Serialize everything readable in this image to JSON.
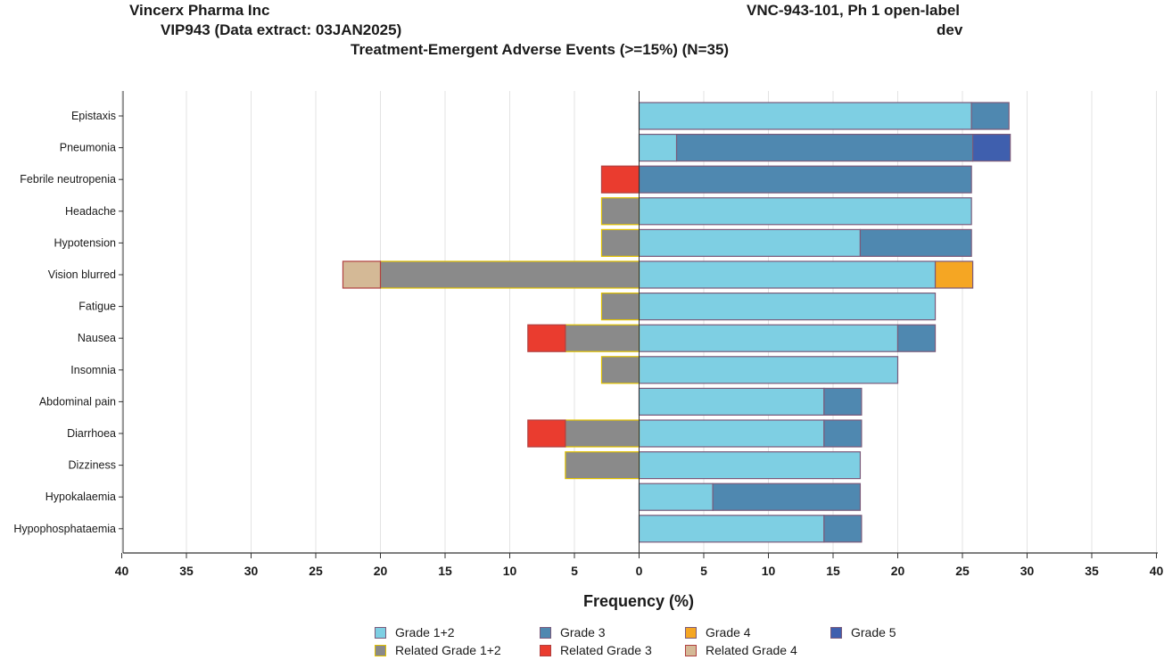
{
  "header": {
    "company": "Vincerx Pharma Inc",
    "extract": "VIP943 (Data extract: 03JAN2025)",
    "study": "VNC-943-101, Ph 1 open-label",
    "status": "dev",
    "title": "Treatment-Emergent Adverse Events (>=15%) (N=35)"
  },
  "chart_data": {
    "type": "bar",
    "orientation": "horizontal-butterfly",
    "title": "Treatment-Emergent Adverse Events (>=15%) (N=35)",
    "xlabel": "Frequency (%)",
    "xlim": [
      -40,
      40
    ],
    "xticks": [
      -40,
      -35,
      -30,
      -25,
      -20,
      -15,
      -10,
      -5,
      0,
      5,
      10,
      15,
      20,
      25,
      30,
      35,
      40
    ],
    "xtick_labels": [
      "40",
      "35",
      "30",
      "25",
      "20",
      "15",
      "10",
      "5",
      "0",
      "5",
      "10",
      "15",
      "20",
      "25",
      "30",
      "35",
      "40"
    ],
    "grid": true,
    "categories": [
      "Epistaxis",
      "Pneumonia",
      "Febrile neutropenia",
      "Headache",
      "Hypotension",
      "Vision blurred",
      "Fatigue",
      "Nausea",
      "Insomnia",
      "Abdominal pain",
      "Diarrhoea",
      "Dizziness",
      "Hypokalaemia",
      "Hypophosphataemia"
    ],
    "series": [
      {
        "name": "Grade 1+2",
        "side": "right",
        "color": "#7ecfe3",
        "edge": "#7a5a7a",
        "values": [
          25.7,
          2.9,
          0,
          25.7,
          17.1,
          22.9,
          22.9,
          20.0,
          20.0,
          14.3,
          14.3,
          17.1,
          5.7,
          14.3
        ]
      },
      {
        "name": "Grade 3",
        "side": "right",
        "color": "#4f88b0",
        "edge": "#7a5a7a",
        "values": [
          2.9,
          22.9,
          25.7,
          0,
          8.6,
          0,
          0,
          2.9,
          0,
          2.9,
          2.9,
          0,
          11.4,
          2.9
        ]
      },
      {
        "name": "Grade 4",
        "side": "right",
        "color": "#f5a623",
        "edge": "#7a5a7a",
        "values": [
          0,
          0,
          0,
          0,
          0,
          2.9,
          0,
          0,
          0,
          0,
          0,
          0,
          0,
          0
        ]
      },
      {
        "name": "Grade 5",
        "side": "right",
        "color": "#3f5fae",
        "edge": "#7a5a7a",
        "values": [
          0,
          2.9,
          0,
          0,
          0,
          0,
          0,
          0,
          0,
          0,
          0,
          0,
          0,
          0
        ]
      },
      {
        "name": "Related Grade 1+2",
        "side": "left",
        "color": "#8a8a8a",
        "edge": "#e0c000",
        "values": [
          0,
          0,
          0,
          2.9,
          2.9,
          20.0,
          2.9,
          5.7,
          2.9,
          0,
          5.7,
          5.7,
          0,
          0
        ]
      },
      {
        "name": "Related Grade 3",
        "side": "left",
        "color": "#ea3c2f",
        "edge": "#b04040",
        "values": [
          0,
          0,
          2.9,
          0,
          0,
          0,
          0,
          2.9,
          0,
          0,
          2.9,
          0,
          0,
          0
        ]
      },
      {
        "name": "Related Grade 4",
        "side": "left",
        "color": "#d4b996",
        "edge": "#b04040",
        "values": [
          0,
          0,
          0,
          0,
          0,
          2.9,
          0,
          0,
          0,
          0,
          0,
          0,
          0,
          0
        ]
      }
    ],
    "legend": [
      "Grade 1+2",
      "Grade 3",
      "Grade 4",
      "Grade 5",
      "Related Grade 1+2",
      "Related Grade 3",
      "Related Grade 4"
    ],
    "legend_position": "bottom"
  }
}
